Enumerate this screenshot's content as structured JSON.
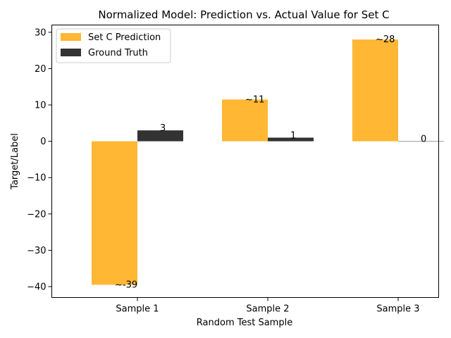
{
  "chart_data": {
    "type": "bar",
    "title": "Normalized Model: Prediction vs. Actual Value for Set C",
    "xlabel": "Random Test Sample",
    "ylabel": "Target/Label",
    "categories": [
      "Sample 1",
      "Sample 2",
      "Sample 3"
    ],
    "series": [
      {
        "name": "Set C Prediction",
        "values": [
          -39.5,
          11.5,
          28.0
        ],
        "labels": [
          "~-39",
          "~11",
          "~28"
        ],
        "color": "#ffb734"
      },
      {
        "name": "Ground Truth",
        "values": [
          3,
          1,
          0
        ],
        "labels": [
          "3",
          "1",
          "0"
        ],
        "color": "#333333"
      }
    ],
    "ylim": [
      -43,
      32
    ],
    "yticks": [
      -40,
      -30,
      -20,
      -10,
      0,
      10,
      20,
      30
    ],
    "ytick_labels": [
      "−40",
      "−30",
      "−20",
      "−10",
      "0",
      "10",
      "20",
      "30"
    ],
    "grid": false,
    "legend_position": "upper-left"
  }
}
